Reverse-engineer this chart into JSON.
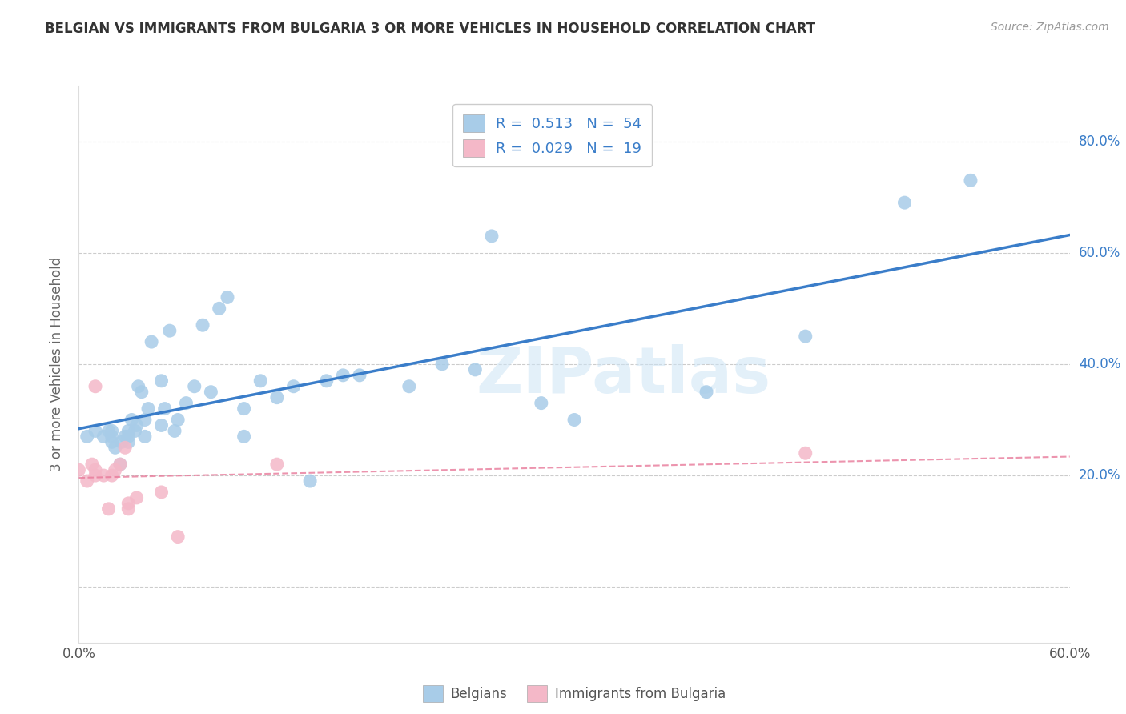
{
  "title": "BELGIAN VS IMMIGRANTS FROM BULGARIA 3 OR MORE VEHICLES IN HOUSEHOLD CORRELATION CHART",
  "source": "Source: ZipAtlas.com",
  "ylabel": "3 or more Vehicles in Household",
  "bg_color": "#ffffff",
  "plot_bg_color": "#ffffff",
  "watermark": "ZIPatlas",
  "legend_label1": "Belgians",
  "legend_label2": "Immigrants from Bulgaria",
  "R1": 0.513,
  "N1": 54,
  "R2": 0.029,
  "N2": 19,
  "blue_color": "#a8cce8",
  "pink_color": "#f4b8c8",
  "blue_line_color": "#3a7dc9",
  "pink_line_color": "#e87a9a",
  "grid_color": "#cccccc",
  "xlim": [
    0.0,
    0.6
  ],
  "ylim": [
    -0.1,
    0.9
  ],
  "yticks": [
    0.0,
    0.2,
    0.4,
    0.6,
    0.8
  ],
  "ytick_labels": [
    "",
    "20.0%",
    "40.0%",
    "60.0%",
    "80.0%"
  ],
  "xticks": [
    0.0,
    0.1,
    0.2,
    0.3,
    0.4,
    0.5,
    0.6
  ],
  "xtick_labels": [
    "0.0%",
    "",
    "",
    "",
    "",
    "",
    "60.0%"
  ],
  "belgians_x": [
    0.005,
    0.01,
    0.015,
    0.018,
    0.02,
    0.02,
    0.02,
    0.022,
    0.025,
    0.026,
    0.028,
    0.03,
    0.03,
    0.03,
    0.032,
    0.034,
    0.035,
    0.036,
    0.038,
    0.04,
    0.04,
    0.042,
    0.044,
    0.05,
    0.05,
    0.052,
    0.055,
    0.058,
    0.06,
    0.065,
    0.07,
    0.075,
    0.08,
    0.085,
    0.09,
    0.1,
    0.1,
    0.11,
    0.12,
    0.13,
    0.14,
    0.15,
    0.16,
    0.17,
    0.2,
    0.22,
    0.24,
    0.25,
    0.28,
    0.3,
    0.38,
    0.44,
    0.5,
    0.54
  ],
  "belgians_y": [
    0.27,
    0.28,
    0.27,
    0.28,
    0.26,
    0.27,
    0.28,
    0.25,
    0.22,
    0.26,
    0.27,
    0.28,
    0.27,
    0.26,
    0.3,
    0.28,
    0.29,
    0.36,
    0.35,
    0.27,
    0.3,
    0.32,
    0.44,
    0.29,
    0.37,
    0.32,
    0.46,
    0.28,
    0.3,
    0.33,
    0.36,
    0.47,
    0.35,
    0.5,
    0.52,
    0.27,
    0.32,
    0.37,
    0.34,
    0.36,
    0.19,
    0.37,
    0.38,
    0.38,
    0.36,
    0.4,
    0.39,
    0.63,
    0.33,
    0.3,
    0.35,
    0.45,
    0.69,
    0.73
  ],
  "bulgaria_x": [
    0.0,
    0.005,
    0.008,
    0.01,
    0.01,
    0.01,
    0.015,
    0.018,
    0.02,
    0.022,
    0.025,
    0.028,
    0.03,
    0.03,
    0.035,
    0.05,
    0.06,
    0.12,
    0.44
  ],
  "bulgaria_y": [
    0.21,
    0.19,
    0.22,
    0.2,
    0.21,
    0.36,
    0.2,
    0.14,
    0.2,
    0.21,
    0.22,
    0.25,
    0.14,
    0.15,
    0.16,
    0.17,
    0.09,
    0.22,
    0.24
  ]
}
